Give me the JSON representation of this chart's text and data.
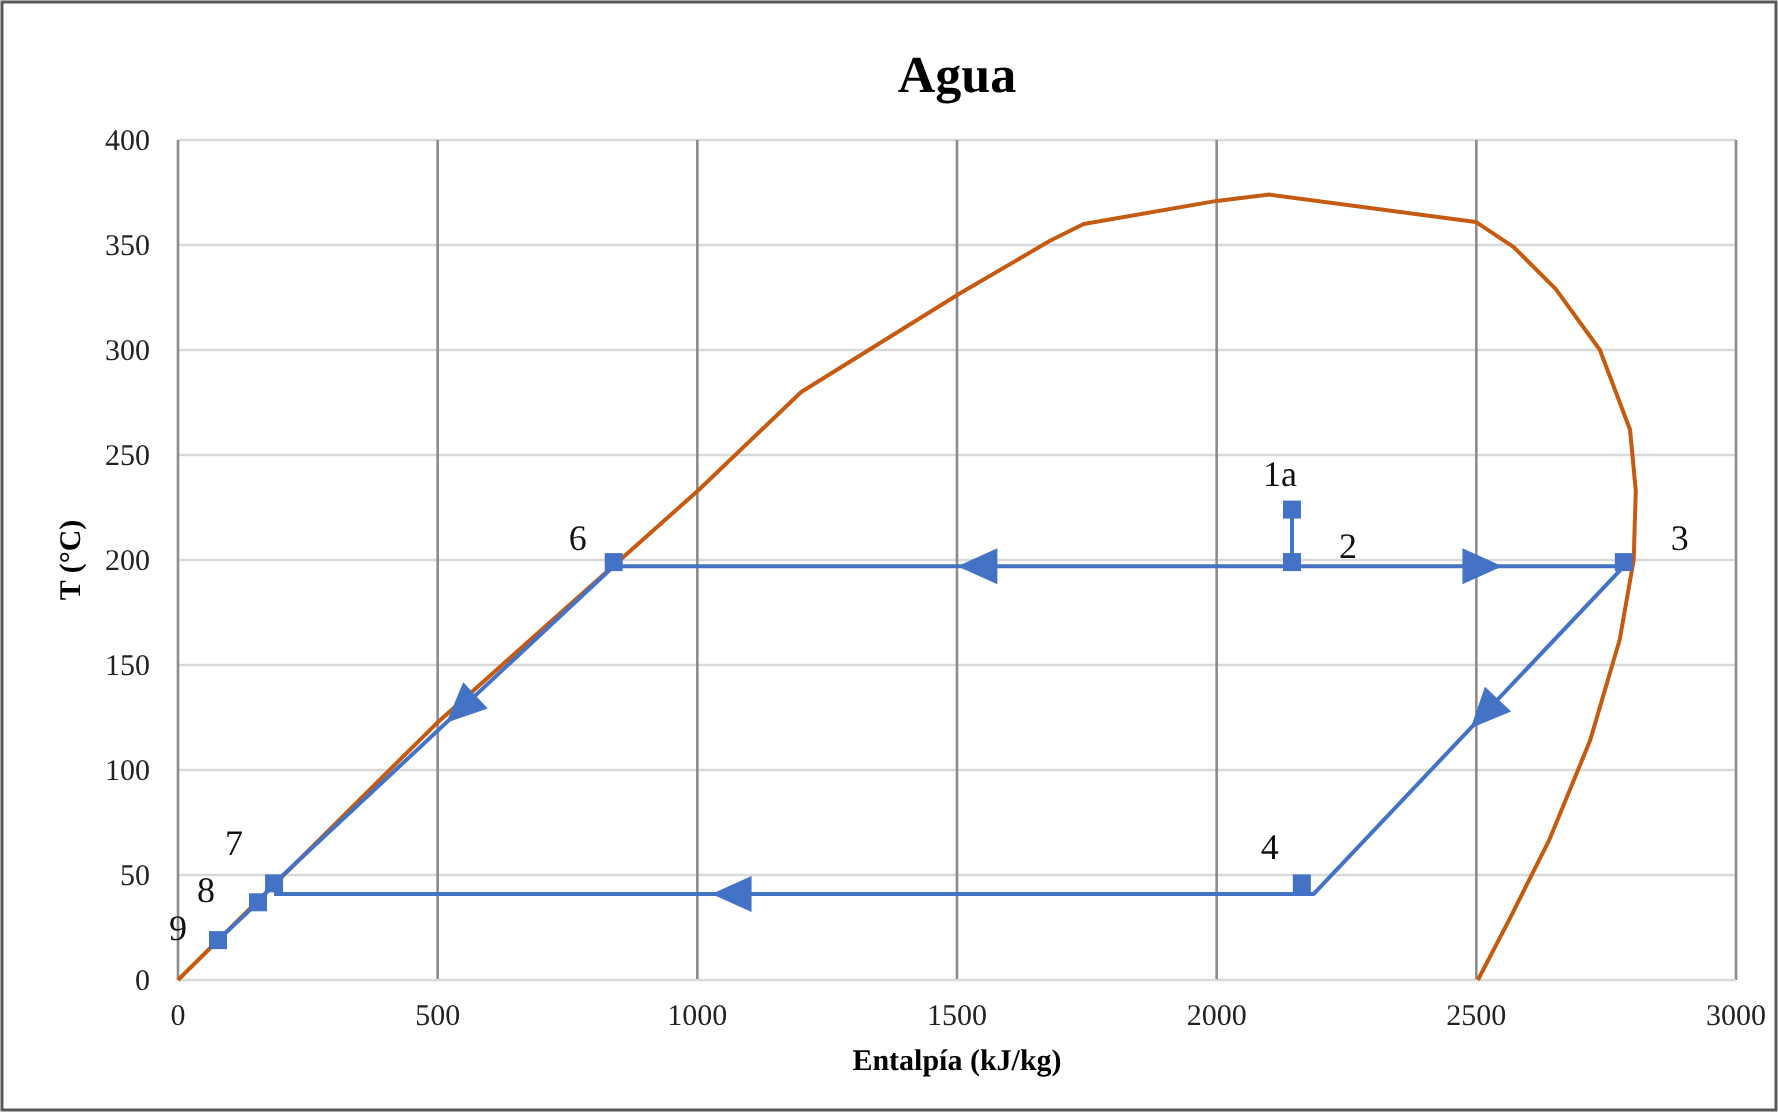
{
  "chart_data": {
    "type": "line",
    "title": "Agua",
    "xlabel": "Entalpía (kJ/kg)",
    "ylabel": "T (°C)",
    "xlim": [
      0,
      3000
    ],
    "ylim": [
      0,
      400
    ],
    "xticks": [
      0,
      500,
      1000,
      1500,
      2000,
      2500,
      3000
    ],
    "yticks": [
      0,
      50,
      100,
      150,
      200,
      250,
      300,
      350,
      400
    ],
    "grid": true,
    "series": [
      {
        "color": "#c55a11",
        "marker": "none",
        "x": [
          0,
          497,
          1001,
          1200,
          1506,
          1679,
          1744,
          2000,
          2102,
          2499,
          2572,
          2653,
          2738,
          2796,
          2807,
          2803,
          2776,
          2719,
          2641,
          2564,
          2503
        ],
        "values": [
          0,
          122,
          233,
          280,
          327,
          352,
          360,
          371,
          374,
          361,
          349,
          329,
          300,
          262,
          233,
          200,
          162,
          114,
          67,
          29,
          0
        ]
      },
      {
        "color": "#4472c4",
        "marker": "none",
        "x": [
          77,
          154,
          185,
          839,
          2784,
          2187,
          185
        ],
        "values": [
          19,
          37,
          46,
          197,
          197,
          41,
          41
        ]
      },
      {
        "color": "#4472c4",
        "marker": "square",
        "x": [
          2145,
          2145
        ],
        "values": [
          224,
          199
        ]
      },
      {
        "type": "scatter",
        "color": "#4472c4",
        "marker": "square",
        "x": [
          2784,
          2164,
          839,
          185,
          154,
          77
        ],
        "values": [
          199,
          46,
          199,
          46,
          37,
          19
        ]
      }
    ],
    "annotations": [
      {
        "text": "1a",
        "x": 2145,
        "y": 224
      },
      {
        "text": "2",
        "x": 2145,
        "y": 199
      },
      {
        "text": "3",
        "x": 2784,
        "y": 199
      },
      {
        "text": "4",
        "x": 2164,
        "y": 46
      },
      {
        "text": "6",
        "x": 839,
        "y": 199
      },
      {
        "text": "7",
        "x": 185,
        "y": 46
      },
      {
        "text": "8",
        "x": 154,
        "y": 37
      },
      {
        "text": "9",
        "x": 77,
        "y": 19
      }
    ]
  }
}
